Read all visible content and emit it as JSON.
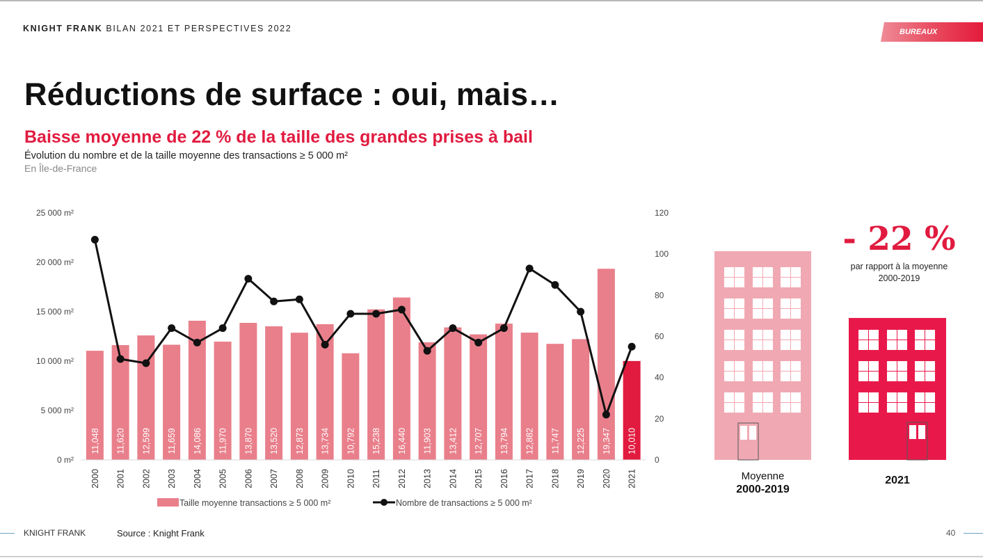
{
  "header": {
    "brand": "KNIGHT FRANK",
    "report": "BILAN 2021 ET PERSPECTIVES 2022"
  },
  "badge": "BUREAUX",
  "title": "Réductions de surface : oui, mais…",
  "subtitle": "Baisse moyenne de 22 % de la taille des grandes prises à bail",
  "caption": "Évolution du nombre et de la taille moyenne des transactions ≥ 5 000 m²",
  "region": "En Île-de-France",
  "chart_data": {
    "type": "bar",
    "title": "Évolution du nombre et de la taille moyenne des transactions ≥ 5 000 m²",
    "categories": [
      "2000",
      "2001",
      "2002",
      "2003",
      "2004",
      "2005",
      "2006",
      "2007",
      "2008",
      "2009",
      "2010",
      "2011",
      "2012",
      "2013",
      "2014",
      "2015",
      "2016",
      "2017",
      "2018",
      "2019",
      "2020",
      "2021"
    ],
    "series": [
      {
        "name": "Taille moyenne transactions ≥ 5 000 m²",
        "type": "bar",
        "axis": "left",
        "color": "#e97f8b",
        "highlight_color": "#e11b3f",
        "values": [
          11048,
          11620,
          12599,
          11659,
          14086,
          11970,
          13870,
          13520,
          12873,
          13734,
          10792,
          15238,
          16440,
          11903,
          13412,
          12707,
          13794,
          12882,
          11747,
          12225,
          19347,
          10010
        ],
        "labels": [
          "11,048",
          "11,620",
          "12,599",
          "11,659",
          "14,086",
          "11,970",
          "13,870",
          "13,520",
          "12,873",
          "13,734",
          "10,792",
          "15,238",
          "16,440",
          "11,903",
          "13,412",
          "12,707",
          "13,794",
          "12,882",
          "11,747",
          "12,225",
          "19,347",
          "10,010"
        ]
      },
      {
        "name": "Nombre de transactions ≥ 5 000 m²",
        "type": "line",
        "axis": "right",
        "color": "#111111",
        "values": [
          107,
          49,
          47,
          64,
          57,
          64,
          88,
          77,
          78,
          56,
          71,
          71,
          73,
          53,
          64,
          57,
          64,
          93,
          85,
          72,
          22,
          55
        ]
      }
    ],
    "y_left": {
      "min": 0,
      "max": 25000,
      "ticks": [
        0,
        5000,
        10000,
        15000,
        20000,
        25000
      ],
      "tick_labels": [
        "0 m²",
        "5 000 m²",
        "10 000 m²",
        "15 000 m²",
        "20 000 m²",
        "25 000 m²"
      ]
    },
    "y_right": {
      "min": 0,
      "max": 120,
      "ticks": [
        0,
        20,
        40,
        60,
        80,
        100,
        120
      ],
      "tick_labels": [
        "0",
        "20",
        "40",
        "60",
        "80",
        "100",
        "120"
      ]
    },
    "legend": "bottom",
    "xlabel": "",
    "ylabel": ""
  },
  "comparison": {
    "pct": "- 22 %",
    "note_line1": "par rapport à la moyenne",
    "note_line2": "2000-2019",
    "avg_label": "Moyenne",
    "avg_years": "2000-2019",
    "current_label": "2021",
    "avg_color": "#f0a9b3",
    "current_color": "#e8194a"
  },
  "footer": {
    "brand": "KNIGHT FRANK",
    "source": "Source : Knight Frank",
    "page": "40"
  }
}
